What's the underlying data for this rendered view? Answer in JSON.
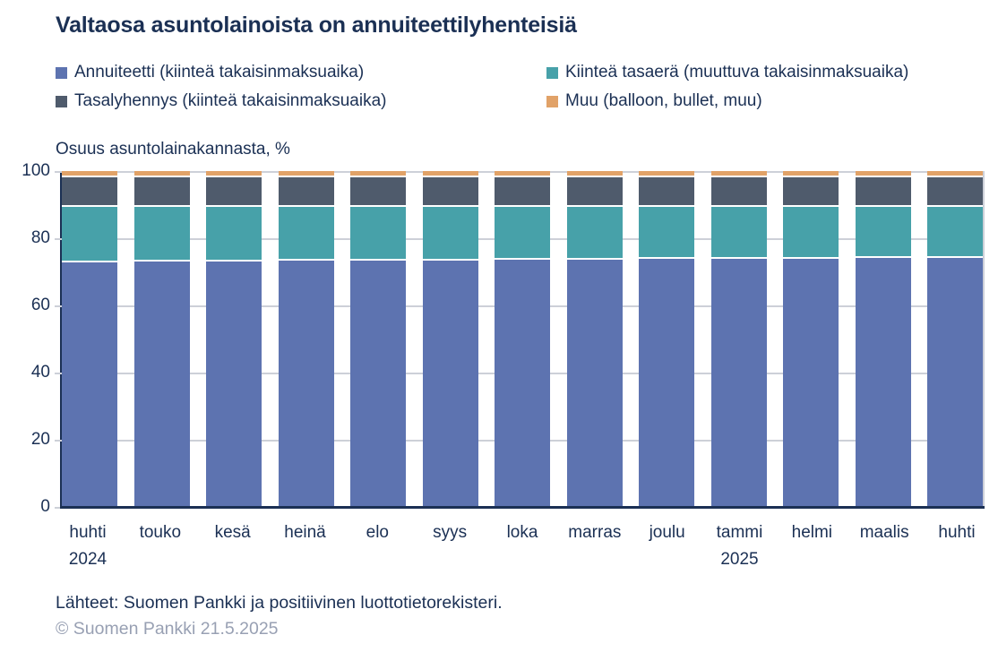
{
  "title": "Valtaosa asuntolainoista on annuiteettilyhenteisiä",
  "axis_title": "Osuus asuntolainakannasta, %",
  "chart_data": {
    "type": "bar",
    "variant": "stacked",
    "categories": [
      "huhti",
      "touko",
      "kesä",
      "heinä",
      "elo",
      "syys",
      "loka",
      "marras",
      "joulu",
      "tammi",
      "helmi",
      "maalis",
      "huhti"
    ],
    "year_labels": [
      {
        "index": 0,
        "label": "2024"
      },
      {
        "index": 9,
        "label": "2025"
      }
    ],
    "series": [
      {
        "name": "Annuiteetti (kiinteä takaisinmaksuaika)",
        "color": "#5d73b0",
        "values": [
          73.3,
          73.5,
          73.6,
          73.8,
          73.9,
          74.0,
          74.1,
          74.2,
          74.3,
          74.4,
          74.5,
          74.6,
          74.7
        ]
      },
      {
        "name": "Kiinteä tasaerä (muuttuva takaisinmaksuaika)",
        "color": "#47a1a9",
        "values": [
          16.7,
          16.5,
          16.4,
          16.2,
          16.1,
          16.0,
          15.9,
          15.8,
          15.7,
          15.6,
          15.5,
          15.4,
          15.3
        ]
      },
      {
        "name": "Tasalyhennys (kiinteä takaisinmaksuaika)",
        "color": "#4f5b6c",
        "values": [
          8.6,
          8.6,
          8.6,
          8.6,
          8.6,
          8.6,
          8.6,
          8.6,
          8.6,
          8.6,
          8.6,
          8.6,
          8.6
        ]
      },
      {
        "name": "Muu (balloon, bullet, muu)",
        "color": "#e1a268",
        "values": [
          1.4,
          1.4,
          1.4,
          1.4,
          1.4,
          1.4,
          1.4,
          1.4,
          1.4,
          1.4,
          1.4,
          1.4,
          1.4
        ]
      }
    ],
    "title": "Valtaosa asuntolainoista on annuiteettilyhenteisiä",
    "xlabel": "",
    "ylabel": "Osuus asuntolainakannasta, %",
    "ylim": [
      0,
      100
    ],
    "yticks": [
      0,
      20,
      40,
      60,
      80,
      100
    ],
    "grid": true,
    "legend_position": "top"
  },
  "footer": {
    "sources": "Lähteet: Suomen Pankki ja positiivinen luottotietorekisteri.",
    "copyright": "© Suomen Pankki 21.5.2025"
  },
  "colors": {
    "text_navy": "#1b3054",
    "annuity_blue": "#5d73b0",
    "fixed_installment_teal": "#47a1a9",
    "equal_amortization_slate": "#4f5b6c",
    "other_orange": "#e1a268",
    "gridline_gray": "#cdd0d8",
    "copyright_gray": "#98a0b3",
    "separator_white": "#ffffff"
  }
}
